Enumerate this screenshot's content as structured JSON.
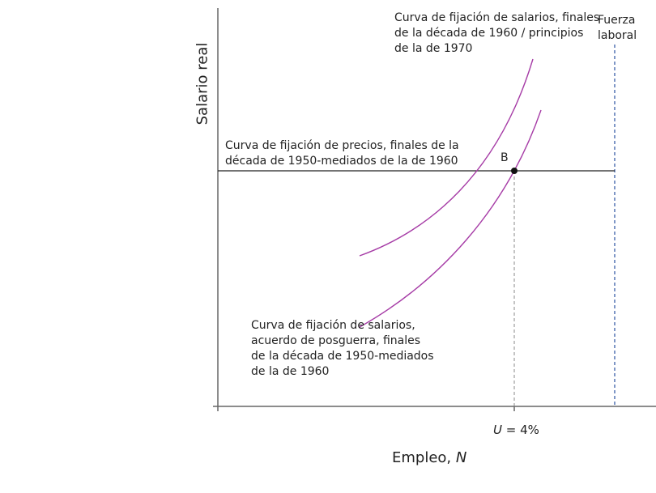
{
  "diagram": {
    "y_axis_label": "Salario real",
    "x_axis_label": "Empleo, ",
    "x_axis_label_var": "N",
    "x_tick_label": "U = 4%",
    "x_tick_var": "U",
    "x_tick_rest": " = 4%",
    "point_label": "B",
    "labor_force_label": [
      "Fuerza",
      "laboral"
    ],
    "price_setting_label": [
      "Curva de fijación de precios, finales de la",
      "década de 1950-mediados de la de 1960"
    ],
    "wage_curve_late_label": [
      "Curva de fijación de salarios, finales",
      "de la década de 1960 / principios",
      "de la de 1970"
    ],
    "wage_curve_postwar_label": [
      "Curva de fijación de salarios,",
      "acuerdo de posguerra, finales",
      "de la década de 1950-mediados",
      "de la de 1960"
    ],
    "colors": {
      "wage_curves": "#a63ca6",
      "labor_force": "#3a5fa8",
      "axes": "#555555",
      "price_line": "#222222"
    }
  }
}
